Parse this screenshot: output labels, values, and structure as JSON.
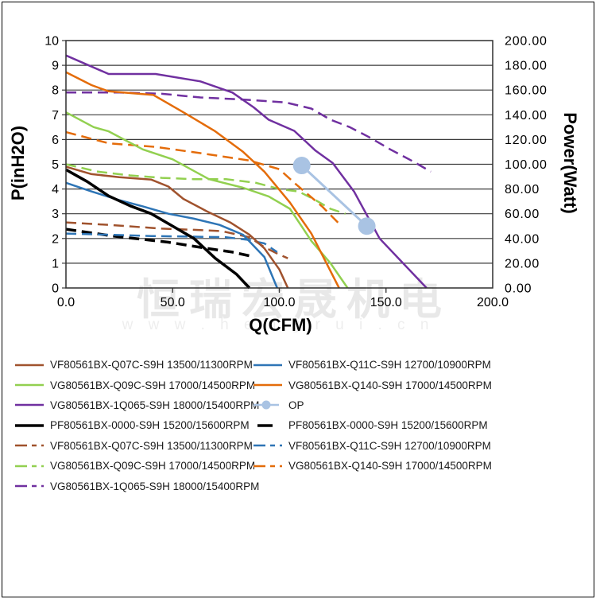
{
  "watermark": {
    "line1": "恒瑞宏晟机电",
    "line2": "w w w . h e n g r u i . c n"
  },
  "style_colors": {
    "grid": "#3b3b3b",
    "plot_border": "#2f2f2f",
    "tick_text": "#000000",
    "background": "#ffffff"
  },
  "chart_data": {
    "type": "line",
    "title": "",
    "grid": "horizontal",
    "legend_position": "bottom",
    "axes": {
      "x": {
        "label": "Q(CFM)",
        "min": 0,
        "max": 200,
        "ticks": [
          {
            "v": 0,
            "label": "0.0"
          },
          {
            "v": 50,
            "label": "50.0"
          },
          {
            "v": 100,
            "label": "100.0"
          },
          {
            "v": 150,
            "label": "150.0"
          },
          {
            "v": 200,
            "label": "200.0"
          }
        ]
      },
      "left": {
        "label": "P(inH2O)",
        "min": 0,
        "max": 10,
        "ticks": [
          {
            "v": 10,
            "label": "10"
          },
          {
            "v": 9,
            "label": "9"
          },
          {
            "v": 8,
            "label": "8"
          },
          {
            "v": 7,
            "label": "7"
          },
          {
            "v": 6,
            "label": "6"
          },
          {
            "v": 5,
            "label": "5"
          },
          {
            "v": 4,
            "label": "4"
          },
          {
            "v": 3,
            "label": "3"
          },
          {
            "v": 2,
            "label": "2"
          },
          {
            "v": 1,
            "label": "1"
          },
          {
            "v": 0,
            "label": "0"
          }
        ]
      },
      "right": {
        "label": "Power(Watt)",
        "min": 0,
        "max": 200,
        "ticks": [
          {
            "v": 200,
            "label": "200.00"
          },
          {
            "v": 180,
            "label": "180.00"
          },
          {
            "v": 160,
            "label": "160.00"
          },
          {
            "v": 140,
            "label": "140.00"
          },
          {
            "v": 120,
            "label": "120.00"
          },
          {
            "v": 100,
            "label": "100.00"
          },
          {
            "v": 80,
            "label": "80.00"
          },
          {
            "v": 60,
            "label": "60.00"
          },
          {
            "v": 40,
            "label": "40.00"
          },
          {
            "v": 20,
            "label": "20.00"
          },
          {
            "v": 0,
            "label": "0.00"
          }
        ]
      }
    },
    "series": [
      {
        "name": "PF80561BX-0000-S9H 15200/15600RPM power",
        "color": "#000000",
        "style": "dashed",
        "width": 3.5,
        "axis": "right",
        "points": [
          [
            0,
            47.5
          ],
          [
            22,
            42
          ],
          [
            48,
            37
          ],
          [
            66,
            32
          ],
          [
            78,
            29
          ],
          [
            86,
            26
          ]
        ]
      },
      {
        "name": "VF80561BX-Q07C-S9H 13500/11300RPM power",
        "color": "#A0522D",
        "style": "dashed",
        "width": 2.5,
        "axis": "right",
        "points": [
          [
            0,
            53
          ],
          [
            20,
            51
          ],
          [
            45,
            48
          ],
          [
            60,
            47
          ],
          [
            73,
            46
          ],
          [
            86,
            41
          ],
          [
            93,
            33
          ],
          [
            100,
            27
          ],
          [
            104,
            24
          ]
        ]
      },
      {
        "name": "VF80561BX-Q11C-S9H 12700/10900RPM power",
        "color": "#2E75B6",
        "style": "dashed",
        "width": 2.5,
        "axis": "right",
        "points": [
          [
            0,
            44
          ],
          [
            20,
            43
          ],
          [
            40,
            42
          ],
          [
            60,
            41.5
          ],
          [
            75,
            41
          ],
          [
            85,
            39
          ],
          [
            93,
            36
          ],
          [
            99,
            29
          ]
        ]
      },
      {
        "name": "VG80561BX-Q09C-S9H 17000/14500RPM power",
        "color": "#92D050",
        "style": "dashed",
        "width": 2.5,
        "axis": "right",
        "points": [
          [
            0,
            100
          ],
          [
            15,
            94
          ],
          [
            30,
            91
          ],
          [
            45,
            89
          ],
          [
            60,
            88
          ],
          [
            75,
            88
          ],
          [
            89,
            85
          ],
          [
            100,
            80
          ],
          [
            109,
            78
          ],
          [
            117,
            71
          ],
          [
            124,
            64
          ],
          [
            131,
            60
          ]
        ]
      },
      {
        "name": "VG80561BX-Q140-S9H 17000/14500RPM power",
        "color": "#E46C0A",
        "style": "dashed",
        "width": 2.5,
        "axis": "right",
        "points": [
          [
            0,
            126
          ],
          [
            20,
            117
          ],
          [
            42,
            114
          ],
          [
            63,
            109
          ],
          [
            86,
            103
          ],
          [
            100,
            96
          ],
          [
            107,
            85
          ],
          [
            120,
            66
          ],
          [
            128,
            52
          ]
        ]
      },
      {
        "name": "VG80561BX-1Q065-S9H 18000/15400RPM power",
        "color": "#7030A0",
        "style": "dashed",
        "width": 2.5,
        "axis": "right",
        "points": [
          [
            0,
            158
          ],
          [
            25,
            158
          ],
          [
            45,
            157
          ],
          [
            63,
            154
          ],
          [
            86,
            152
          ],
          [
            103,
            150
          ],
          [
            115,
            145
          ],
          [
            124,
            136
          ],
          [
            133,
            130
          ],
          [
            142,
            122
          ],
          [
            152,
            112
          ],
          [
            163,
            102
          ],
          [
            171,
            94
          ]
        ]
      },
      {
        "name": "VF80561BX-Q07C-S9H 13500/11300RPM",
        "color": "#A0522D",
        "style": "solid",
        "width": 2.5,
        "axis": "left",
        "points": [
          [
            0,
            4.9
          ],
          [
            12,
            4.6
          ],
          [
            25,
            4.48
          ],
          [
            40,
            4.38
          ],
          [
            48,
            4.1
          ],
          [
            55,
            3.6
          ],
          [
            66,
            3.1
          ],
          [
            77,
            2.65
          ],
          [
            86,
            2.15
          ],
          [
            93,
            1.6
          ],
          [
            100,
            0.75
          ],
          [
            104,
            0
          ]
        ]
      },
      {
        "name": "VF80561BX-Q11C-S9H 12700/10900RPM",
        "color": "#2E75B6",
        "style": "solid",
        "width": 2.5,
        "axis": "left",
        "points": [
          [
            0,
            4.25
          ],
          [
            12,
            3.9
          ],
          [
            25,
            3.55
          ],
          [
            36,
            3.3
          ],
          [
            48,
            3.0
          ],
          [
            60,
            2.8
          ],
          [
            72,
            2.55
          ],
          [
            83,
            2.15
          ],
          [
            93,
            1.25
          ],
          [
            99,
            0
          ]
        ]
      },
      {
        "name": "VG80561BX-Q09C-S9H 17000/14500RPM",
        "color": "#92D050",
        "style": "solid",
        "width": 2.5,
        "axis": "left",
        "points": [
          [
            0,
            7.1
          ],
          [
            13,
            6.5
          ],
          [
            20,
            6.33
          ],
          [
            36,
            5.6
          ],
          [
            50,
            5.2
          ],
          [
            67,
            4.4
          ],
          [
            83,
            4.05
          ],
          [
            95,
            3.7
          ],
          [
            105,
            3.2
          ],
          [
            115,
            1.9
          ],
          [
            124,
            1.0
          ],
          [
            132,
            0
          ]
        ]
      },
      {
        "name": "VG80561BX-Q140-S9H 17000/14500RPM",
        "color": "#E46C0A",
        "style": "solid",
        "width": 2.5,
        "axis": "left",
        "points": [
          [
            0,
            8.72
          ],
          [
            12,
            8.2
          ],
          [
            20,
            7.95
          ],
          [
            41,
            7.8
          ],
          [
            56,
            7.05
          ],
          [
            70,
            6.33
          ],
          [
            83,
            5.5
          ],
          [
            93,
            4.7
          ],
          [
            105,
            3.45
          ],
          [
            115,
            2.2
          ],
          [
            128,
            0
          ]
        ]
      },
      {
        "name": "PF80561BX-0000-S9H 15200/15600RPM",
        "color": "#000000",
        "style": "solid",
        "width": 3.5,
        "axis": "left",
        "points": [
          [
            0,
            4.78
          ],
          [
            10,
            4.3
          ],
          [
            20,
            3.72
          ],
          [
            30,
            3.32
          ],
          [
            40,
            3.0
          ],
          [
            52,
            2.4
          ],
          [
            60,
            2.0
          ],
          [
            70,
            1.2
          ],
          [
            80,
            0.55
          ],
          [
            86,
            0
          ]
        ]
      },
      {
        "name": "VG80561BX-1Q065-S9H 18000/15400RPM",
        "color": "#7030A0",
        "style": "solid",
        "width": 2.5,
        "axis": "left",
        "points": [
          [
            0,
            9.4
          ],
          [
            20,
            8.65
          ],
          [
            42,
            8.65
          ],
          [
            63,
            8.35
          ],
          [
            78,
            7.9
          ],
          [
            88,
            7.3
          ],
          [
            95,
            6.8
          ],
          [
            107,
            6.35
          ],
          [
            117,
            5.55
          ],
          [
            125,
            5.05
          ],
          [
            135,
            3.9
          ],
          [
            147,
            2.0
          ],
          [
            158,
            1.0
          ],
          [
            169,
            0
          ]
        ]
      },
      {
        "name": "OP",
        "color": "#A9C3E3",
        "style": "solid",
        "width": 3,
        "axis": "right",
        "marker": "circle",
        "marker_r": 11,
        "points": [
          [
            110.5,
            99
          ],
          [
            141,
            50
          ]
        ]
      }
    ]
  },
  "legend": {
    "columns": [
      [
        {
          "label": "VF80561BX-Q07C-S9H 13500/11300RPM",
          "color": "#A0522D",
          "style": "solid"
        },
        {
          "label": "VG80561BX-Q09C-S9H 17000/14500RPM",
          "color": "#92D050",
          "style": "solid"
        },
        {
          "label": "VG80561BX-1Q065-S9H 18000/15400RPM",
          "color": "#7030A0",
          "style": "solid"
        },
        {
          "label": "PF80561BX-0000-S9H 15200/15600RPM",
          "color": "#000000",
          "style": "solid-thick"
        },
        {
          "label": "VF80561BX-Q07C-S9H 13500/11300RPM",
          "color": "#A0522D",
          "style": "dashed"
        },
        {
          "label": "VG80561BX-Q09C-S9H 17000/14500RPM",
          "color": "#92D050",
          "style": "dashed"
        },
        {
          "label": "VG80561BX-1Q065-S9H 18000/15400RPM",
          "color": "#7030A0",
          "style": "dashed"
        }
      ],
      [
        {
          "label": "VF80561BX-Q11C-S9H 12700/10900RPM",
          "color": "#2E75B6",
          "style": "solid"
        },
        {
          "label": "VG80561BX-Q140-S9H 17000/14500RPM",
          "color": "#E46C0A",
          "style": "solid"
        },
        {
          "label": "OP",
          "color": "#A9C3E3",
          "style": "marker"
        },
        {
          "label": "PF80561BX-0000-S9H 15200/15600RPM",
          "color": "#000000",
          "style": "dash-single"
        },
        {
          "label": "VF80561BX-Q11C-S9H 12700/10900RPM",
          "color": "#2E75B6",
          "style": "dashed"
        },
        {
          "label": "VG80561BX-Q140-S9H 17000/14500RPM",
          "color": "#E46C0A",
          "style": "dashed"
        }
      ]
    ]
  }
}
